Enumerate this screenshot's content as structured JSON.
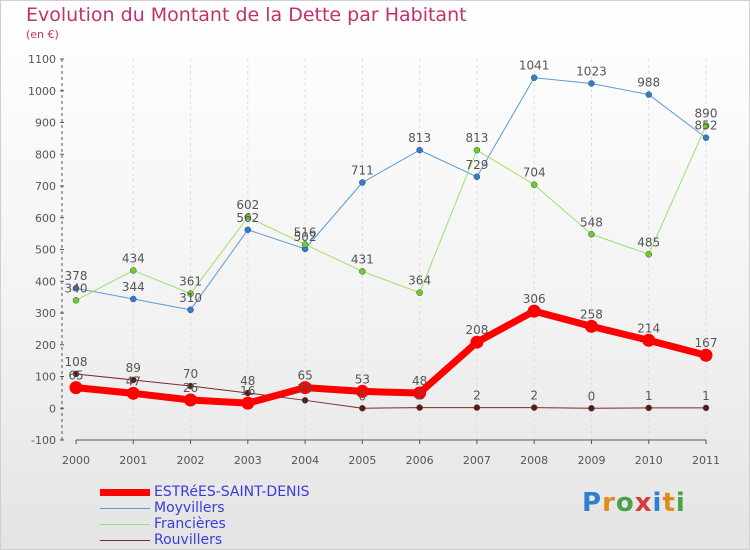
{
  "title": "Evolution du Montant de la Dette par Habitant",
  "subtitle": "(en €)",
  "logo": [
    "P",
    "r",
    "o",
    "x",
    "i",
    "t",
    "i"
  ],
  "colors": {
    "title": "#c3306e",
    "grid": "#dddddd",
    "axis": "#555555",
    "labels": "#555555",
    "legend_text": "#3b3bd9",
    "logo": [
      "#2f7fd1",
      "#e08b1c",
      "#49a34b",
      "#d63b3b",
      "#2f7fd1",
      "#e08b1c",
      "#49a34b"
    ]
  },
  "chart_data": {
    "type": "line",
    "title": "Evolution du Montant de la Dette par Habitant",
    "subtitle": "(en €)",
    "x": [
      "2000",
      "2001",
      "2002",
      "2003",
      "2004",
      "2005",
      "2006",
      "2007",
      "2008",
      "2009",
      "2010",
      "2011"
    ],
    "ylim": [
      -100,
      1100
    ],
    "yticks": [
      -100,
      0,
      100,
      200,
      300,
      400,
      500,
      600,
      700,
      800,
      900,
      1000,
      1100
    ],
    "grid": "vertical-dashed",
    "legend_position": "bottom-left",
    "series": [
      {
        "name": "Moyvillers",
        "color": "#5b9bd5",
        "marker": "#2f7fd1",
        "width": 1,
        "values": [
          378,
          344,
          310,
          562,
          502,
          711,
          813,
          729,
          1041,
          1023,
          988,
          852
        ]
      },
      {
        "name": "Francières",
        "color": "#9de06b",
        "marker": "#6ccf2c",
        "width": 1,
        "values": [
          340,
          434,
          361,
          602,
          516,
          431,
          364,
          813,
          704,
          548,
          485,
          890
        ]
      },
      {
        "name": "Rouvillers",
        "color": "#7a2a2a",
        "marker": "#5a1a1a",
        "width": 1,
        "values": [
          108,
          89,
          70,
          48,
          25,
          0,
          2,
          2,
          2,
          0,
          1,
          1
        ]
      },
      {
        "name": "ESTRéES-SAINT-DENIS",
        "color": "#ff0000",
        "marker": "#ff0000",
        "width": 7,
        "values": [
          65,
          47,
          26,
          16,
          65,
          53,
          48,
          208,
          306,
          258,
          214,
          167
        ]
      }
    ]
  },
  "legend": [
    {
      "name": "ESTRéES-SAINT-DENIS",
      "color": "#ff0000",
      "width": 7
    },
    {
      "name": "Moyvillers",
      "color": "#5b9bd5",
      "width": 1
    },
    {
      "name": "Francières",
      "color": "#9de06b",
      "width": 1
    },
    {
      "name": "Rouvillers",
      "color": "#7a2a2a",
      "width": 1
    }
  ]
}
